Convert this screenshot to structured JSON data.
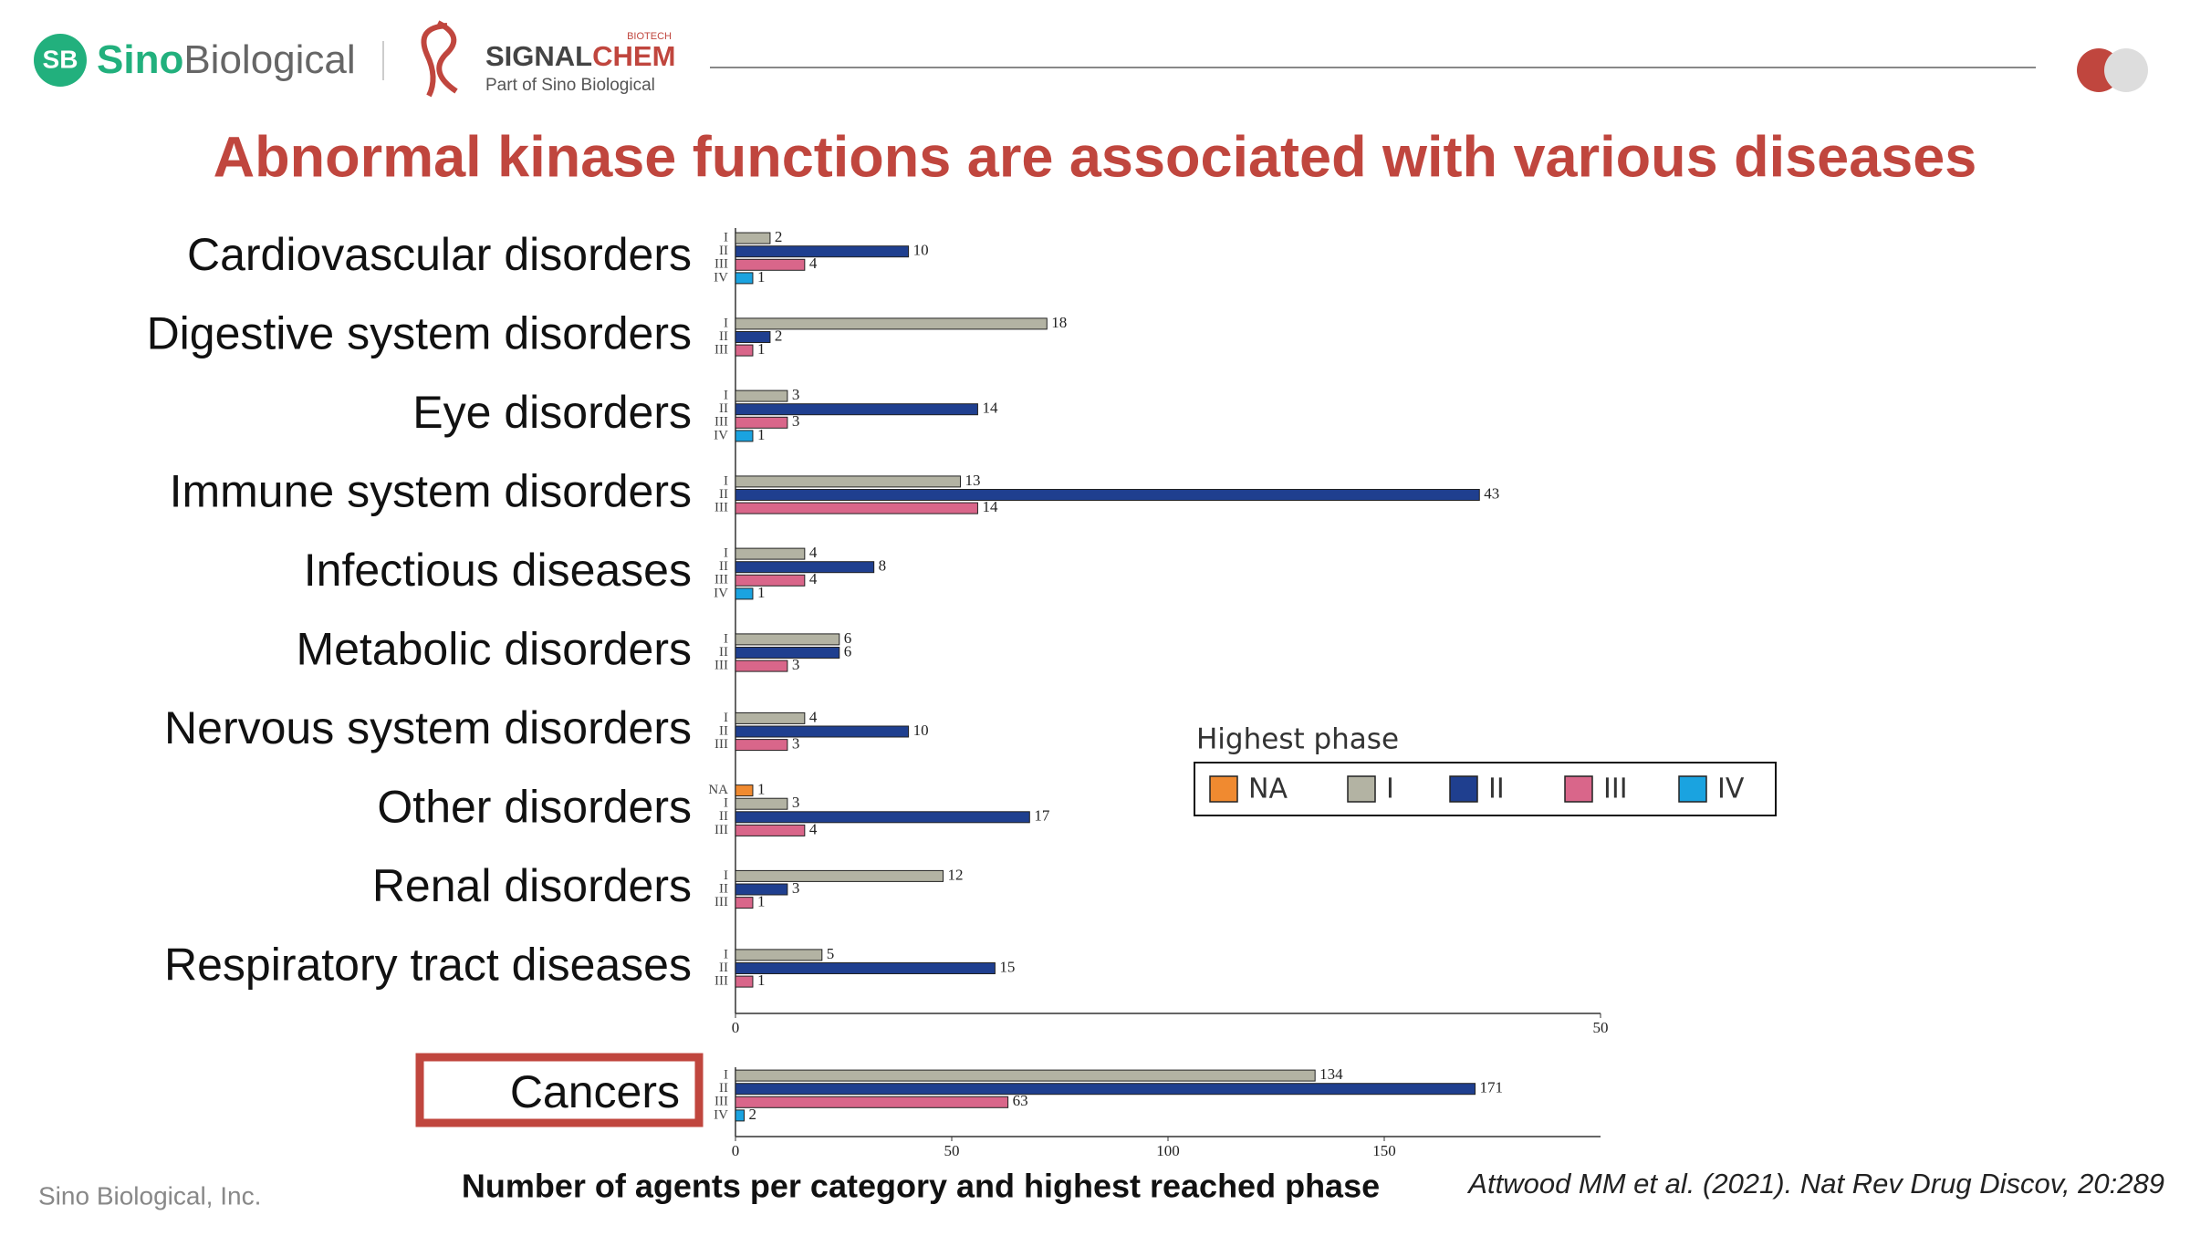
{
  "header": {
    "logo_mark": "SB",
    "brand_first": "Sino",
    "brand_second": "Biological",
    "partner_first": "SIGNAL",
    "partner_second": "CHEM",
    "partner_tag": "BIOTECH",
    "partner_sub": "Part of Sino Biological"
  },
  "title": "Abnormal kinase functions are associated with various diseases",
  "caption": "Number of agents per category and highest reached phase",
  "citation": "Attwood MM et al. (2021). Nat Rev Drug Discov, 20:289",
  "footer": "Sino Biological, Inc.",
  "chart_data": [
    {
      "type": "bar",
      "orientation": "horizontal",
      "legend_title": "Highest phase",
      "categories": [
        "Cardiovascular disorders",
        "Digestive system disorders",
        "Eye disorders",
        "Immune system disorders",
        "Infectious diseases",
        "Metabolic disorders",
        "Nervous system disorders",
        "Other disorders",
        "Renal disorders",
        "Respiratory tract diseases"
      ],
      "series": [
        {
          "name": "NA",
          "color": "#f08a30",
          "values": [
            null,
            null,
            null,
            null,
            null,
            null,
            null,
            1,
            null,
            null
          ]
        },
        {
          "name": "I",
          "color": "#b3b3a3",
          "values": [
            2,
            18,
            3,
            13,
            4,
            6,
            4,
            3,
            12,
            5
          ]
        },
        {
          "name": "II",
          "color": "#1f3f8f",
          "values": [
            10,
            2,
            14,
            43,
            8,
            6,
            10,
            17,
            3,
            15
          ]
        },
        {
          "name": "III",
          "color": "#d9668a",
          "values": [
            4,
            1,
            3,
            14,
            4,
            3,
            3,
            4,
            1,
            1
          ]
        },
        {
          "name": "IV",
          "color": "#1aa3e0",
          "values": [
            1,
            null,
            1,
            null,
            1,
            null,
            null,
            null,
            null,
            null
          ]
        }
      ],
      "xlim": [
        0,
        50
      ],
      "xticks": [
        0,
        50
      ]
    },
    {
      "type": "bar",
      "orientation": "horizontal",
      "categories": [
        "Cancers"
      ],
      "series": [
        {
          "name": "I",
          "color": "#b3b3a3",
          "values": [
            134
          ]
        },
        {
          "name": "II",
          "color": "#1f3f8f",
          "values": [
            171
          ]
        },
        {
          "name": "III",
          "color": "#d9668a",
          "values": [
            63
          ]
        },
        {
          "name": "IV",
          "color": "#1aa3e0",
          "values": [
            2
          ]
        }
      ],
      "xlim": [
        0,
        200
      ],
      "xticks": [
        0,
        50,
        100,
        150
      ]
    }
  ]
}
